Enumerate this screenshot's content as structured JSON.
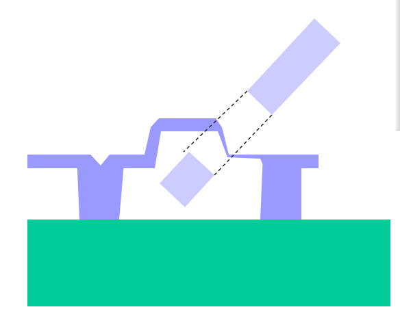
{
  "diagram": {
    "colors": {
      "substrate": "#00CC99",
      "pillar": "#9999FF",
      "layer": "#9999FF",
      "tool": "#CCCCFF",
      "guide_line": "#222222",
      "background": "#FFFFFF"
    },
    "parts": {
      "substrate": "substrate-block",
      "left_pillar": "left-pillar",
      "right_pillar": "right-pillar",
      "layer": "bumped-layer",
      "tool_upper": "tool-upper-segment",
      "tool_lower": "tool-lower-segment",
      "guides": "dashed-guide-lines"
    }
  }
}
